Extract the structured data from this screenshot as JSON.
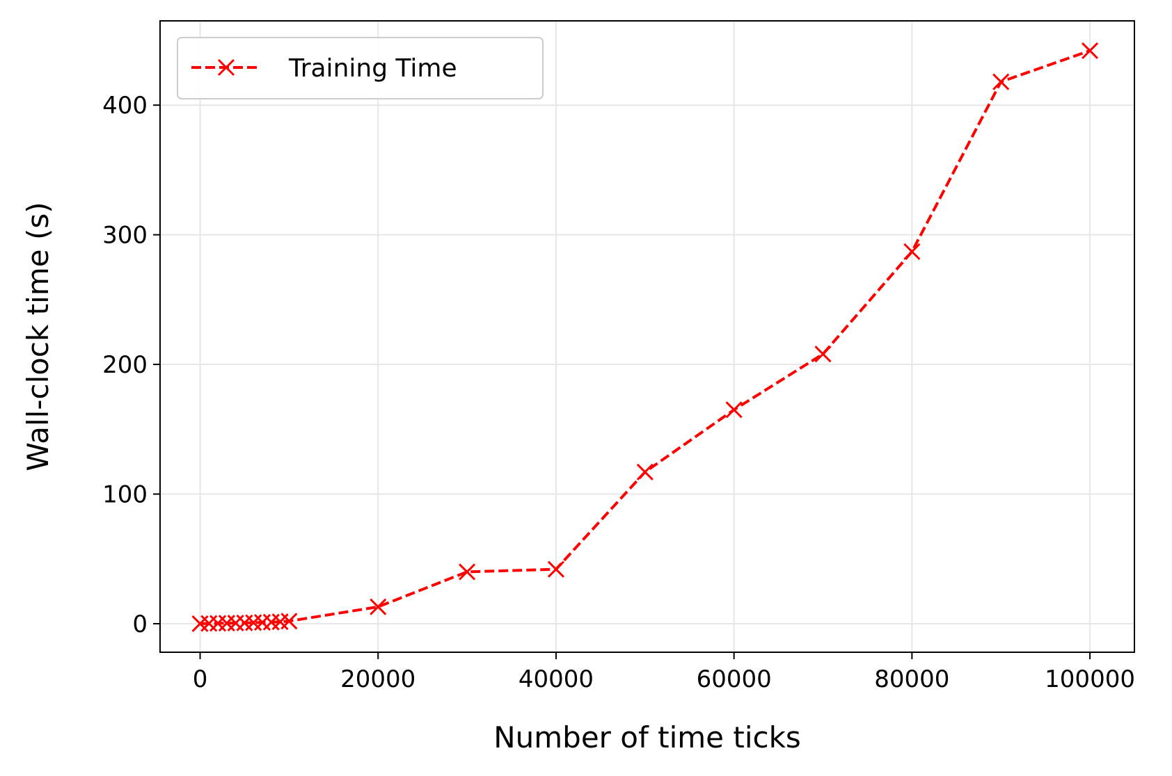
{
  "chart_data": {
    "type": "line",
    "xlabel": "Number of time ticks",
    "ylabel": "Wall-clock time (s)",
    "xlim": [
      -4500,
      105000
    ],
    "ylim": [
      -22,
      465
    ],
    "xticks": [
      0,
      20000,
      40000,
      60000,
      80000,
      100000
    ],
    "xtick_labels": [
      "0",
      "20000",
      "40000",
      "60000",
      "80000",
      "100000"
    ],
    "yticks": [
      0,
      100,
      200,
      300,
      400
    ],
    "ytick_labels": [
      "0",
      "100",
      "200",
      "300",
      "400"
    ],
    "grid": true,
    "legend_position": "top-left",
    "series": [
      {
        "name": "Training Time",
        "color": "#ff0000",
        "line_style": "dashed",
        "marker": "x",
        "x": [
          0,
          1000,
          2000,
          3000,
          4000,
          5000,
          6000,
          7000,
          8000,
          9000,
          10000,
          20000,
          30000,
          40000,
          50000,
          60000,
          70000,
          80000,
          90000,
          100000
        ],
        "y": [
          0,
          0.2,
          0.3,
          0.4,
          0.5,
          0.6,
          0.8,
          1.0,
          1.2,
          1.5,
          2,
          13,
          40,
          42,
          117,
          165,
          208,
          287,
          418,
          442
        ]
      }
    ]
  }
}
